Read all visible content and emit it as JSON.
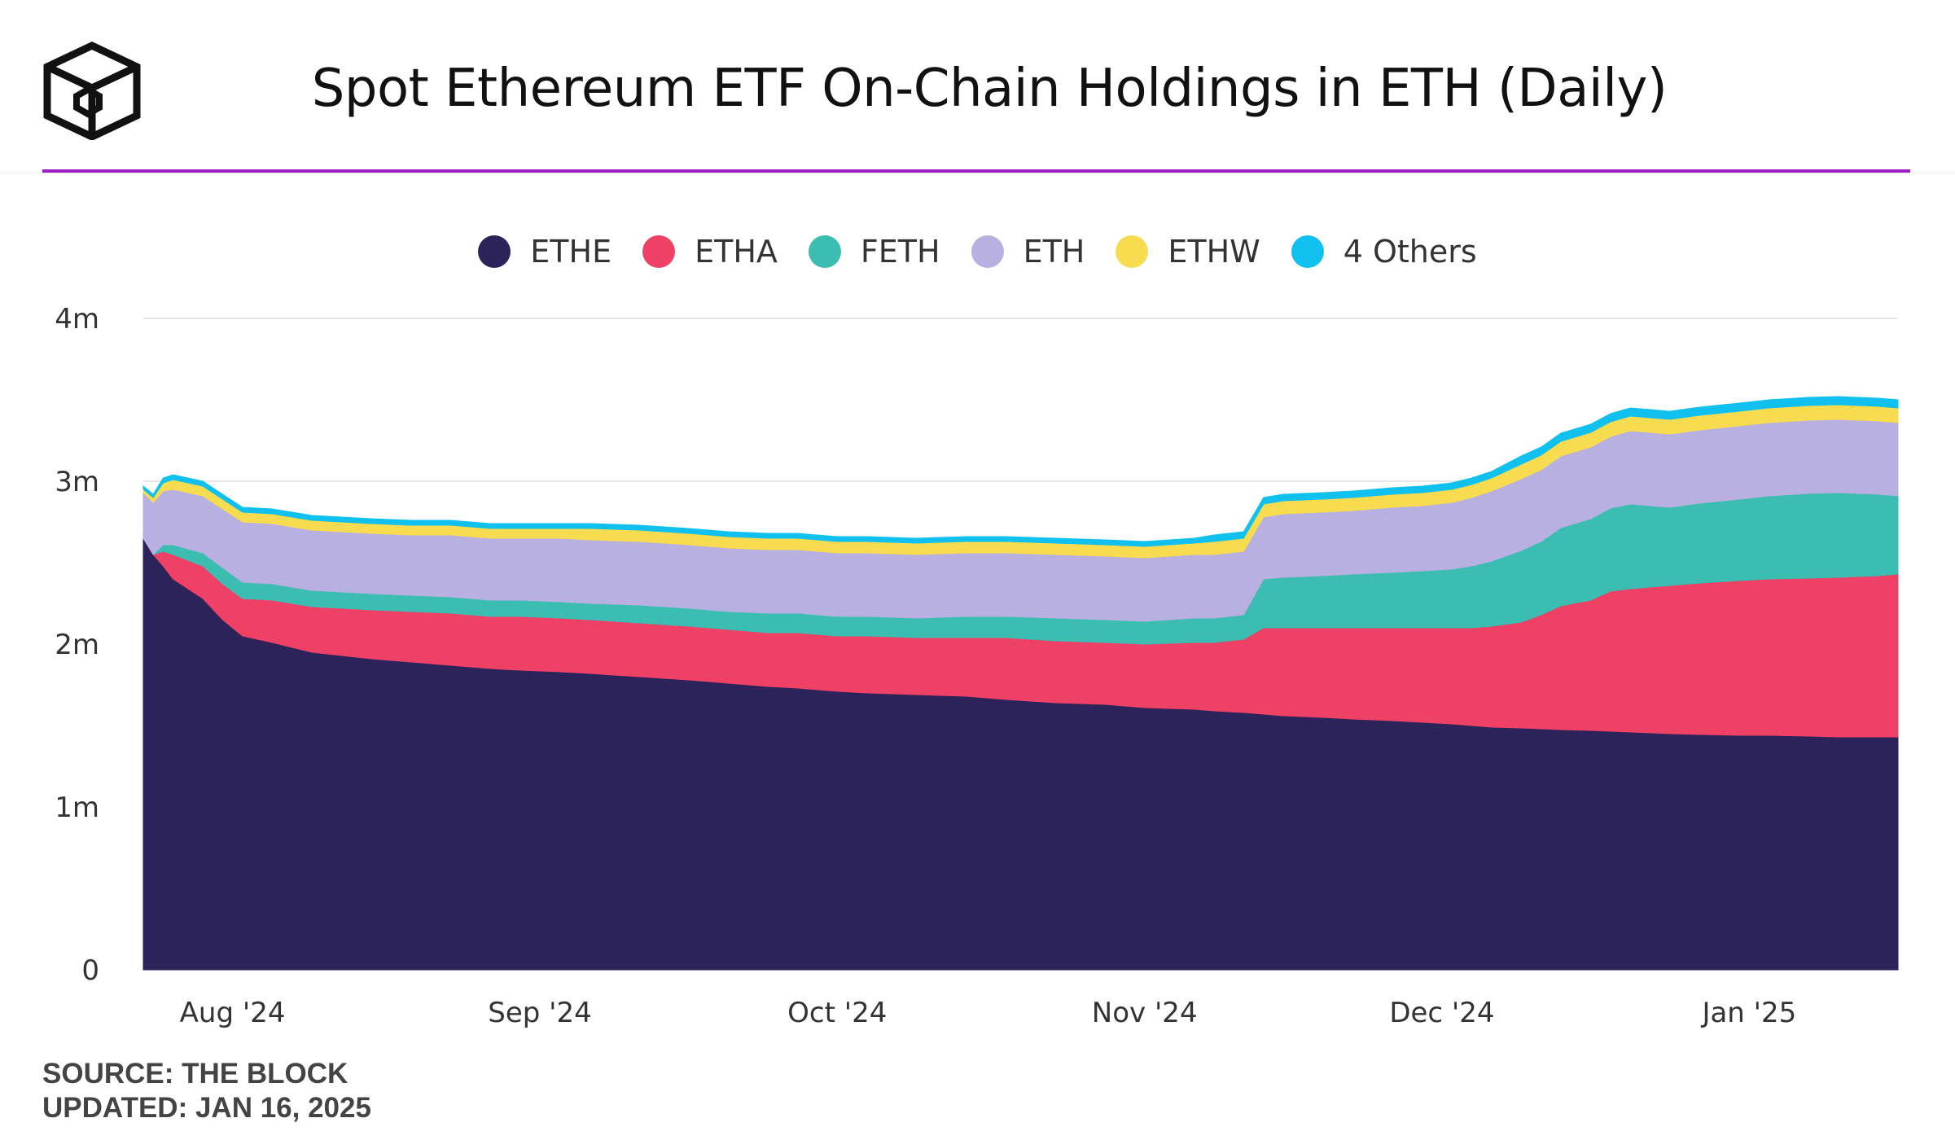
{
  "title": "Spot Ethereum ETF On-Chain Holdings in ETH (Daily)",
  "logo": {
    "icon": "the-block-cube-logo"
  },
  "accent_color": "#a020c8",
  "footer": {
    "source": "SOURCE: THE BLOCK",
    "updated": "UPDATED: JAN 16, 2025"
  },
  "chart_data": {
    "type": "area",
    "stacked": true,
    "legend_position": "top-center",
    "grid": "horizontal",
    "ylim": [
      0,
      4000000
    ],
    "y_ticks": [
      {
        "value": 0,
        "label": "0"
      },
      {
        "value": 1000000,
        "label": "1m"
      },
      {
        "value": 2000000,
        "label": "2m"
      },
      {
        "value": 3000000,
        "label": "3m"
      },
      {
        "value": 4000000,
        "label": "4m"
      }
    ],
    "x_ticks": [
      {
        "date": "2024-08-01",
        "label": "Aug '24"
      },
      {
        "date": "2024-09-01",
        "label": "Sep '24"
      },
      {
        "date": "2024-10-01",
        "label": "Oct '24"
      },
      {
        "date": "2024-11-01",
        "label": "Nov '24"
      },
      {
        "date": "2024-12-01",
        "label": "Dec '24"
      },
      {
        "date": "2025-01-01",
        "label": "Jan '25"
      }
    ],
    "x": [
      "2024-07-23",
      "2024-07-24",
      "2024-07-25",
      "2024-07-26",
      "2024-07-29",
      "2024-07-31",
      "2024-08-02",
      "2024-08-05",
      "2024-08-07",
      "2024-08-09",
      "2024-08-12",
      "2024-08-15",
      "2024-08-19",
      "2024-08-23",
      "2024-08-27",
      "2024-08-30",
      "2024-09-03",
      "2024-09-06",
      "2024-09-11",
      "2024-09-16",
      "2024-09-20",
      "2024-09-24",
      "2024-09-27",
      "2024-10-01",
      "2024-10-04",
      "2024-10-09",
      "2024-10-14",
      "2024-10-18",
      "2024-10-23",
      "2024-10-28",
      "2024-11-01",
      "2024-11-06",
      "2024-11-08",
      "2024-11-11",
      "2024-11-13",
      "2024-11-15",
      "2024-11-19",
      "2024-11-22",
      "2024-11-26",
      "2024-11-29",
      "2024-12-02",
      "2024-12-04",
      "2024-12-06",
      "2024-12-09",
      "2024-12-11",
      "2024-12-13",
      "2024-12-16",
      "2024-12-18",
      "2024-12-20",
      "2024-12-24",
      "2024-12-27",
      "2024-12-31",
      "2025-01-03",
      "2025-01-07",
      "2025-01-10",
      "2025-01-14",
      "2025-01-16"
    ],
    "series": [
      {
        "name": "ETHE",
        "color": "#2c235a",
        "values": [
          2650000,
          2550000,
          2480000,
          2400000,
          2280000,
          2150000,
          2050000,
          2010000,
          1980000,
          1950000,
          1930000,
          1910000,
          1890000,
          1870000,
          1850000,
          1840000,
          1830000,
          1820000,
          1800000,
          1780000,
          1760000,
          1740000,
          1730000,
          1710000,
          1700000,
          1690000,
          1680000,
          1660000,
          1640000,
          1630000,
          1610000,
          1600000,
          1590000,
          1580000,
          1570000,
          1560000,
          1550000,
          1540000,
          1530000,
          1520000,
          1510000,
          1500000,
          1490000,
          1485000,
          1480000,
          1475000,
          1470000,
          1465000,
          1460000,
          1450000,
          1445000,
          1440000,
          1440000,
          1435000,
          1430000,
          1430000,
          1430000
        ]
      },
      {
        "name": "ETHA",
        "color": "#ef4166",
        "values": [
          0,
          0,
          90000,
          150000,
          200000,
          220000,
          230000,
          260000,
          270000,
          280000,
          290000,
          300000,
          310000,
          320000,
          320000,
          330000,
          330000,
          330000,
          330000,
          330000,
          330000,
          330000,
          340000,
          340000,
          350000,
          350000,
          360000,
          380000,
          380000,
          380000,
          390000,
          410000,
          420000,
          450000,
          530000,
          540000,
          550000,
          560000,
          570000,
          580000,
          590000,
          600000,
          620000,
          650000,
          700000,
          760000,
          800000,
          860000,
          880000,
          910000,
          930000,
          950000,
          960000,
          970000,
          980000,
          990000,
          1000000
        ]
      },
      {
        "name": "FETH",
        "color": "#3bbdb2",
        "values": [
          0,
          0,
          40000,
          60000,
          80000,
          100000,
          100000,
          100000,
          100000,
          100000,
          100000,
          100000,
          100000,
          100000,
          100000,
          100000,
          100000,
          100000,
          110000,
          110000,
          110000,
          120000,
          120000,
          120000,
          120000,
          120000,
          130000,
          130000,
          140000,
          140000,
          140000,
          150000,
          150000,
          150000,
          300000,
          310000,
          320000,
          330000,
          340000,
          350000,
          360000,
          380000,
          400000,
          440000,
          450000,
          480000,
          500000,
          510000,
          520000,
          480000,
          490000,
          500000,
          510000,
          520000,
          520000,
          500000,
          480000
        ]
      },
      {
        "name": "ETH",
        "color": "#b7b0e0",
        "values": [
          280000,
          320000,
          330000,
          340000,
          350000,
          360000,
          370000,
          370000,
          370000,
          370000,
          370000,
          370000,
          370000,
          380000,
          380000,
          380000,
          390000,
          390000,
          390000,
          390000,
          390000,
          390000,
          390000,
          390000,
          390000,
          390000,
          390000,
          390000,
          390000,
          390000,
          390000,
          390000,
          390000,
          390000,
          380000,
          390000,
          390000,
          390000,
          400000,
          400000,
          410000,
          420000,
          430000,
          440000,
          440000,
          440000,
          440000,
          440000,
          450000,
          450000,
          450000,
          450000,
          450000,
          450000,
          450000,
          450000,
          450000
        ]
      },
      {
        "name": "ETHW",
        "color": "#f7dc4f",
        "values": [
          20000,
          30000,
          50000,
          60000,
          60000,
          60000,
          60000,
          60000,
          60000,
          60000,
          60000,
          60000,
          60000,
          60000,
          60000,
          60000,
          60000,
          70000,
          70000,
          70000,
          70000,
          70000,
          70000,
          70000,
          70000,
          70000,
          70000,
          70000,
          70000,
          70000,
          70000,
          70000,
          80000,
          80000,
          80000,
          80000,
          80000,
          80000,
          80000,
          80000,
          80000,
          80000,
          80000,
          90000,
          90000,
          90000,
          90000,
          90000,
          90000,
          90000,
          90000,
          90000,
          90000,
          90000,
          90000,
          90000,
          90000
        ]
      },
      {
        "name": "4 Others",
        "color": "#10c1f0",
        "values": [
          20000,
          20000,
          30000,
          30000,
          30000,
          30000,
          30000,
          30000,
          30000,
          30000,
          30000,
          30000,
          30000,
          30000,
          30000,
          30000,
          30000,
          30000,
          30000,
          30000,
          30000,
          30000,
          30000,
          30000,
          30000,
          30000,
          30000,
          30000,
          30000,
          30000,
          30000,
          30000,
          40000,
          40000,
          40000,
          40000,
          40000,
          40000,
          40000,
          40000,
          40000,
          40000,
          40000,
          50000,
          50000,
          50000,
          50000,
          50000,
          50000,
          50000,
          50000,
          50000,
          50000,
          50000,
          50000,
          50000,
          50000
        ]
      }
    ]
  }
}
